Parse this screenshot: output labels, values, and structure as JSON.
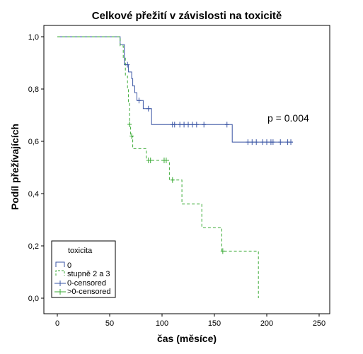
{
  "chart_data": {
    "type": "line",
    "subtype": "kaplan-meier-step",
    "title": "Celkové přežití v závislosti na toxicitě",
    "xlabel": "čas (měsíce)",
    "ylabel": "Podíl přežívajících",
    "xlim": [
      0,
      250
    ],
    "ylim": [
      0,
      1
    ],
    "x_ticks": [
      0,
      50,
      100,
      150,
      200,
      250
    ],
    "y_ticks": [
      0,
      0.2,
      0.4,
      0.6,
      0.8,
      1.0
    ],
    "x_tick_labels": [
      "0",
      "50",
      "100",
      "150",
      "200",
      "250"
    ],
    "y_tick_labels": [
      "0,0",
      "0,2",
      "0,4",
      "0,6",
      "0,8",
      "1,0"
    ],
    "grid": false,
    "legend": {
      "title": "toxicita",
      "position": "bottom-left",
      "entries": [
        "0",
        "stupně 2 a 3",
        "0-censored",
        ">0-censored"
      ]
    },
    "annotation": "p = 0.004",
    "series": [
      {
        "name": "0",
        "color": "#3a55a4",
        "dash": "solid",
        "steps": [
          [
            0,
            1.0
          ],
          [
            60,
            1.0
          ],
          [
            60,
            0.97
          ],
          [
            64,
            0.97
          ],
          [
            64,
            0.893
          ],
          [
            68,
            0.893
          ],
          [
            68,
            0.865
          ],
          [
            71,
            0.865
          ],
          [
            71,
            0.84
          ],
          [
            72,
            0.84
          ],
          [
            72,
            0.812
          ],
          [
            74,
            0.812
          ],
          [
            74,
            0.786
          ],
          [
            76,
            0.786
          ],
          [
            76,
            0.756
          ],
          [
            82,
            0.756
          ],
          [
            82,
            0.725
          ],
          [
            90,
            0.725
          ],
          [
            90,
            0.664
          ],
          [
            167,
            0.664
          ],
          [
            167,
            0.597
          ],
          [
            225,
            0.597
          ]
        ],
        "censored": [
          [
            67,
            0.893
          ],
          [
            78,
            0.756
          ],
          [
            87,
            0.725
          ],
          [
            110,
            0.664
          ],
          [
            112,
            0.664
          ],
          [
            117,
            0.664
          ],
          [
            121,
            0.664
          ],
          [
            125,
            0.664
          ],
          [
            129,
            0.664
          ],
          [
            133,
            0.664
          ],
          [
            140,
            0.664
          ],
          [
            162,
            0.664
          ],
          [
            182,
            0.597
          ],
          [
            186,
            0.597
          ],
          [
            190,
            0.597
          ],
          [
            196,
            0.597
          ],
          [
            200,
            0.597
          ],
          [
            204,
            0.597
          ],
          [
            206,
            0.597
          ],
          [
            213,
            0.597
          ],
          [
            220,
            0.597
          ],
          [
            223,
            0.597
          ]
        ]
      },
      {
        "name": "stupně 2 a 3",
        "color": "#3aaa35",
        "dash": "4,3",
        "steps": [
          [
            0,
            1.0
          ],
          [
            60,
            1.0
          ],
          [
            60,
            0.965
          ],
          [
            63,
            0.965
          ],
          [
            63,
            0.92
          ],
          [
            65,
            0.92
          ],
          [
            65,
            0.85
          ],
          [
            67,
            0.85
          ],
          [
            67,
            0.8
          ],
          [
            68,
            0.8
          ],
          [
            68,
            0.75
          ],
          [
            69,
            0.75
          ],
          [
            69,
            0.66
          ],
          [
            70,
            0.66
          ],
          [
            70,
            0.62
          ],
          [
            72,
            0.62
          ],
          [
            72,
            0.572
          ],
          [
            85,
            0.572
          ],
          [
            85,
            0.527
          ],
          [
            107,
            0.527
          ],
          [
            107,
            0.452
          ],
          [
            119,
            0.452
          ],
          [
            119,
            0.36
          ],
          [
            138,
            0.36
          ],
          [
            138,
            0.27
          ],
          [
            157,
            0.27
          ],
          [
            157,
            0.18
          ],
          [
            192,
            0.18
          ],
          [
            192,
            0.0
          ]
        ],
        "censored": [
          [
            69,
            0.665
          ],
          [
            71,
            0.62
          ],
          [
            87,
            0.527
          ],
          [
            89,
            0.527
          ],
          [
            102,
            0.527
          ],
          [
            104,
            0.527
          ],
          [
            110,
            0.452
          ],
          [
            158,
            0.18
          ]
        ]
      }
    ]
  }
}
